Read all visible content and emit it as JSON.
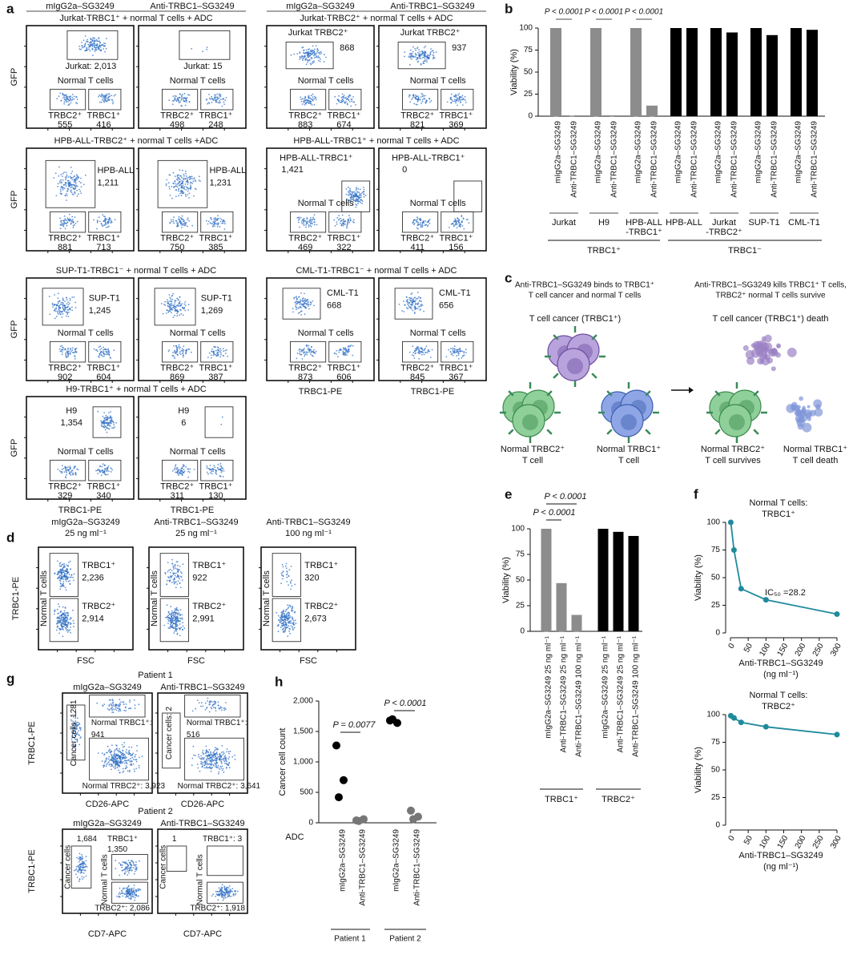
{
  "panel_letters": [
    "a",
    "b",
    "c",
    "d",
    "e",
    "f",
    "g",
    "h"
  ],
  "panel_a": {
    "groups": [
      {
        "headers": [
          "mIgG2a–SG3249",
          "Anti-TRBC1–SG3249"
        ],
        "y_label": "GFP",
        "x_label": "TRBC1-PE",
        "rows": [
          {
            "title": "Jurkat-TRBC1⁺ + normal T cells + ADC",
            "plots": [
              {
                "cancer": [
                  "Jurkat: 2,013"
                ],
                "normal": "Normal T cells",
                "gate2": "TRBC2⁺",
                "count2": "555",
                "gate1": "TRBC1⁺",
                "count1": "416"
              },
              {
                "cancer": [
                  "Jurkat: 15"
                ],
                "normal": "Normal T cells",
                "gate2": "TRBC2⁺",
                "count2": "498",
                "gate1": "TRBC1⁺",
                "count1": "248"
              }
            ]
          },
          {
            "title": "HPB-ALL-TRBC2⁺ + normal T cells +ADC",
            "plots": [
              {
                "cancer": [
                  "HPB-ALL",
                  "1,211"
                ],
                "gate2": "TRBC2⁺",
                "count2": "881",
                "gate1": "TRBC1⁺",
                "count1": "713"
              },
              {
                "cancer": [
                  "HPB-ALL",
                  "1,231"
                ],
                "gate2": "TRBC2⁺",
                "count2": "750",
                "gate1": "TRBC1⁺",
                "count1": "385"
              }
            ]
          },
          {
            "title": "SUP-T1-TRBC1⁻ + normal T cells + ADC",
            "plots": [
              {
                "cancer": [
                  "SUP-T1",
                  "1,245"
                ],
                "normal": "Normal T cells",
                "gate2": "TRBC2⁺",
                "count2": "902",
                "gate1": "TRBC1⁺",
                "count1": "604"
              },
              {
                "cancer": [
                  "SUP-T1",
                  "1,269"
                ],
                "normal": "Normal T cells",
                "gate2": "TRBC2⁺",
                "count2": "869",
                "gate1": "TRBC1⁺",
                "count1": "387"
              }
            ]
          },
          {
            "title": "H9-TRBC1⁺ + normal T cells + ADC",
            "plots": [
              {
                "cancer": [
                  "H9",
                  "1,354"
                ],
                "normal": "Normal T cells",
                "gate2": "TRBC2⁺",
                "count2": "329",
                "gate1": "TRBC1⁺",
                "count1": "340"
              },
              {
                "cancer": [
                  "H9",
                  "6"
                ],
                "normal": "Normal T cells",
                "gate2": "TRBC2⁺",
                "count2": "311",
                "gate1": "TRBC1⁺",
                "count1": "130"
              }
            ]
          }
        ]
      },
      {
        "headers": [
          "mIgG2a–SG3249",
          "Anti-TRBC1–SG3249"
        ],
        "x_label": "TRBC1-PE",
        "rows": [
          {
            "title": "Jurkat-TRBC2⁺ + normal T cells + ADC",
            "plots": [
              {
                "cancer": [
                  "Jurkat TRBC2⁺",
                  "868"
                ],
                "normal": "Normal T cells",
                "gate2": "TRBC2⁺",
                "count2": "883",
                "gate1": "TRBC1⁺",
                "count1": "674"
              },
              {
                "cancer": [
                  "Jurkat TRBC2⁺",
                  "937"
                ],
                "normal": "Normal T cells",
                "gate2": "TRBC2⁺",
                "count2": "821",
                "gate1": "TRBC1⁺",
                "count1": "369"
              }
            ]
          },
          {
            "title": "HPB-ALL-TRBC1⁺ + normal T cells + ADC",
            "plots": [
              {
                "cancer": [
                  "HPB-ALL-TRBC1⁺",
                  "1,421"
                ],
                "normal": "Normal T cells",
                "gate2": "TRBC2⁺",
                "count2": "469",
                "gate1": "TRBC1⁺",
                "count1": "322"
              },
              {
                "cancer": [
                  "HPB-ALL-TRBC1⁺",
                  "0"
                ],
                "normal": "Normal T cells",
                "gate2": "TRBC2⁺",
                "count2": "411",
                "gate1": "TRBC1⁺",
                "count1": "156"
              }
            ]
          },
          {
            "title": "CML-T1-TRBC1⁻ + normal T cells + ADC",
            "plots": [
              {
                "cancer": [
                  "CML-T1",
                  "668"
                ],
                "normal": "Normal T cells",
                "gate2": "TRBC2⁺",
                "count2": "873",
                "gate1": "TRBC1⁺",
                "count1": "606"
              },
              {
                "cancer": [
                  "CML-T1",
                  "656"
                ],
                "normal": "Normal T cells",
                "gate2": "TRBC2⁺",
                "count2": "845",
                "gate1": "TRBC1⁺",
                "count1": "367"
              }
            ]
          }
        ]
      }
    ]
  },
  "panel_b": {
    "chart_data": {
      "type": "bar",
      "y_label": "Viability (%)",
      "categories": [
        "mIgG2a–SG3249",
        "Anti-TRBC1–SG3249",
        "mIgG2a–SG3249",
        "Anti-TRBC1–SG3249",
        "mIgG2a–SG3249",
        "Anti-TRBC1–SG3249",
        "mIgG2a–SG3249",
        "Anti-TRBC1–SG3249",
        "mIgG2a–SG3249",
        "Anti-TRBC1–SG3249",
        "mIgG2a–SG3249",
        "Anti-TRBC1–SG3249",
        "mIgG2a–SG3249",
        "Anti-TRBC1–SG3249"
      ],
      "values": [
        100,
        0,
        100,
        1,
        100,
        12,
        100,
        100,
        100,
        95,
        100,
        92,
        100,
        98
      ],
      "colors": [
        "#8c8c8c",
        "#8c8c8c",
        "#8c8c8c",
        "#8c8c8c",
        "#8c8c8c",
        "#8c8c8c",
        "#000000",
        "#000000",
        "#000000",
        "#000000",
        "#000000",
        "#000000",
        "#000000",
        "#000000"
      ],
      "groups": [
        [
          "Jurkat"
        ],
        [
          "H9"
        ],
        [
          "HPB-ALL",
          "-TRBC1⁺"
        ],
        [
          "HPB-ALL"
        ],
        [
          "Jurkat",
          "-TRBC2⁺"
        ],
        [
          "SUP-T1"
        ],
        [
          "CML-T1"
        ]
      ],
      "supergroups": [
        "TRBC1⁺",
        "TRBC1⁻"
      ],
      "p_values": [
        "P < 0.0001",
        "P < 0.0001",
        "P < 0.0001"
      ],
      "ylim": [
        0,
        100
      ],
      "yticks": [
        0,
        25,
        50,
        75,
        100
      ]
    }
  },
  "panel_c": {
    "left_caption": [
      "Anti-TRBC1–SG3249 binds to TRBC1⁺",
      "T cell cancer and normal T cells"
    ],
    "right_caption": [
      "Anti-TRBC1–SG3249 kills TRBC1⁺ T cells,",
      "TRBC2⁺ normal T cells survive"
    ],
    "cancer_label": "T cell cancer (TRBC1⁺)",
    "cancer_death_label": "T cell cancer (TRBC1⁺) death",
    "cells": [
      [
        "Normal TRBC2⁺",
        "T cell"
      ],
      [
        "Normal TRBC1⁺",
        "T cell"
      ],
      [
        "Normal TRBC2⁺",
        "T cell survives"
      ],
      [
        "Normal TRBC1⁺",
        "T cell death"
      ]
    ]
  },
  "panel_d": {
    "y_label": "TRBC1-PE",
    "x_label": "FSC",
    "plots": [
      {
        "header": [
          "mIgG2a–SG3249",
          "25 ng ml⁻¹"
        ],
        "labels": [
          "TRBC1⁺",
          "2,236",
          "TRBC2⁺",
          "2,914",
          "Normal T cells"
        ]
      },
      {
        "header": [
          "Anti-TRBC1–SG3249",
          "25  ng ml⁻¹"
        ],
        "labels": [
          "TRBC1⁺",
          "922",
          "TRBC2⁺",
          "2,991",
          "Normal T cells"
        ]
      },
      {
        "header": [
          "Anti-TRBC1–SG3249",
          "100  ng ml⁻¹"
        ],
        "labels": [
          "TRBC1⁺",
          "320",
          "TRBC2⁺",
          "2,673",
          "Normal T cells"
        ]
      }
    ]
  },
  "panel_e": {
    "chart_data": {
      "type": "bar",
      "y_label": "Viability (%)",
      "categories": [
        "mIgG2a–SG3249 25 ng ml⁻¹",
        "Anti-TRBC1–SG3249 25 ng ml⁻¹",
        "Anti-TRBC1–SG3249 100 ng ml⁻¹",
        "mIgG2a–SG3249 25 ng ml⁻¹",
        "Anti-TRBC1–SG3249 25 ng ml⁻¹",
        "Anti-TRBC1–SG3249 100 ng ml⁻¹"
      ],
      "values": [
        100,
        47,
        16,
        100,
        97,
        93
      ],
      "colors": [
        "#8c8c8c",
        "#8c8c8c",
        "#8c8c8c",
        "#000000",
        "#000000",
        "#000000"
      ],
      "supergroups": [
        "TRBC1⁺",
        "TRBC2⁺"
      ],
      "p_values": [
        "P < 0.0001",
        "P < 0.0001"
      ],
      "ylim": [
        0,
        100
      ],
      "yticks": [
        0,
        25,
        50,
        75,
        100
      ]
    }
  },
  "panel_f": {
    "chart_data": [
      {
        "type": "line",
        "title": [
          "Normal T cells:",
          "TRBC1⁺"
        ],
        "x": [
          1,
          10,
          30,
          100,
          300
        ],
        "values": [
          100,
          75,
          40,
          30,
          17
        ],
        "color": "#1f8a9c",
        "annotation": "IC₅₀ =28.2",
        "x_label": [
          "Anti-TRBC1–SG3249",
          "(ng ml⁻¹)"
        ],
        "y_label": "Viability (%)",
        "xlim": [
          0,
          300
        ],
        "xticks": [
          0,
          50,
          100,
          150,
          200,
          250,
          300
        ],
        "ylim": [
          0,
          100
        ],
        "yticks": [
          0,
          25,
          50,
          75,
          100
        ]
      },
      {
        "type": "line",
        "title": [
          "Normal T cells:",
          "TRBC2⁺"
        ],
        "x": [
          1,
          10,
          30,
          100,
          300
        ],
        "values": [
          99,
          97,
          93,
          89,
          82
        ],
        "color": "#1f8a9c",
        "x_label": [
          "Anti-TRBC1–SG3249",
          "(ng ml⁻¹)"
        ],
        "y_label": "Viability (%)",
        "xlim": [
          0,
          300
        ],
        "xticks": [
          0,
          50,
          100,
          150,
          200,
          250,
          300
        ],
        "ylim": [
          0,
          100
        ],
        "yticks": [
          0,
          25,
          50,
          75,
          100
        ]
      }
    ]
  },
  "panel_g": {
    "y_label": "TRBC1-PE",
    "patients": [
      {
        "title": "Patient 1",
        "headers": [
          "mIgG2a–SG3249",
          "Anti-TRBC1–SG3249"
        ],
        "x_label": "CD26-APC",
        "plots": [
          {
            "texts": [
              "Cancer cells: 1281",
              "Normal TRBC1⁺:",
              "941",
              "Normal TRBC2⁺: 3,923"
            ]
          },
          {
            "texts": [
              "Cancer cells: 2",
              "Normal TRBC1⁺:",
              "516",
              "Normal TRBC2⁺: 3,641"
            ]
          }
        ]
      },
      {
        "title": "Patient 2",
        "headers": [
          "mIgG2a–SG3249",
          "Anti-TRBC1–SG3249"
        ],
        "x_label": "CD7-APC",
        "plots": [
          {
            "texts": [
              "Cancer cells",
              "1,684",
              "TRBC1⁺",
              "1,350",
              "Normal T cells",
              "TRBC2⁺: 2,086"
            ]
          },
          {
            "texts": [
              "Cancer cells",
              "1",
              "TRBC1⁺: 3",
              "Normal T cells",
              "TRBC2⁺: 1,918"
            ]
          }
        ]
      }
    ]
  },
  "panel_h": {
    "chart_data": {
      "type": "dot",
      "y_label": "Cancer cell count",
      "row_label": "ADC",
      "categories": [
        "mIgG2a–SG3249",
        "Anti-TRBC1–SG3249",
        "mIgG2a–SG3249",
        "Anti-TRBC1–SG3249"
      ],
      "values": [
        [
          1270,
          700,
          420
        ],
        [
          40,
          60,
          30
        ],
        [
          1680,
          1640,
          1700
        ],
        [
          200,
          100,
          60
        ]
      ],
      "colors": [
        "#000000",
        "#777777",
        "#000000",
        "#777777"
      ],
      "groups": [
        "Patient 1",
        "Patient 2"
      ],
      "p_values": [
        "P = 0.0077",
        "P < 0.0001"
      ],
      "ylim": [
        0,
        2000
      ],
      "yticks": [
        0,
        500,
        {
          "value": 1000,
          "label": "1,000"
        },
        {
          "value": 1500,
          "label": "1,500"
        },
        {
          "value": 2000,
          "label": "2,000"
        }
      ]
    }
  }
}
